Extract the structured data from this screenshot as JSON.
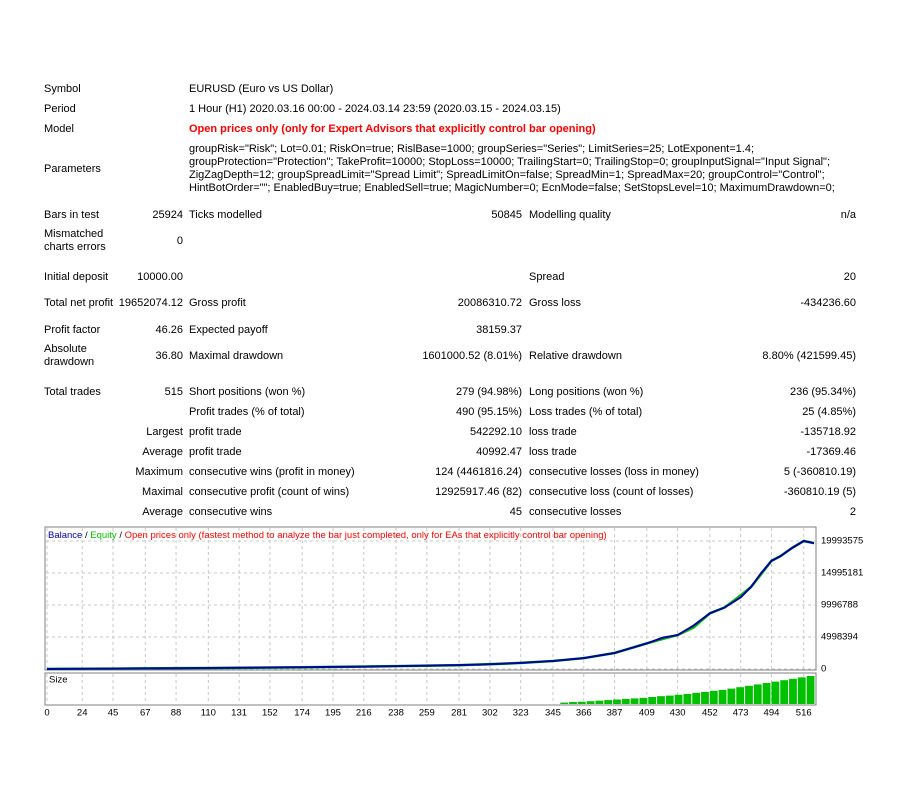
{
  "report": {
    "header_rows": [
      {
        "label": "Symbol",
        "value": [
          "EURUSD (Euro vs US Dollar)"
        ]
      },
      {
        "label": "Period",
        "value": [
          "1 Hour (H1) 2020.03.16 00:00 - 2024.03.14 23:59 (2020.03.15 - 2024.03.15)"
        ]
      },
      {
        "label": "Model",
        "value": [
          "Open prices only (only for Expert Advisors that explicitly control bar opening)"
        ],
        "value_color": "#ff0000"
      },
      {
        "label": "Parameters",
        "value": [
          "groupRisk=\"Risk\"; Lot=0.01; RiskOn=true; RislBase=1000; groupSeries=\"Series\"; LimitSeries=25; LotExponent=1.4;",
          "groupProtection=\"Protection\"; TakeProfit=10000; StopLoss=10000; TrailingStart=0; TrailingStop=0; groupInputSignal=\"Input Signal\";",
          "ZigZagDepth=12; groupSpreadLimit=\"Spread Limit\"; SpreadLimitOn=false; SpreadMin=1; SpreadMax=20; groupControl=\"Control\";",
          "HintBotOrder=\"\"; EnabledBuy=true; EnabledSell=true; MagicNumber=0; EcnMode=false; SetStopsLevel=10; MaximumDrawdown=0;"
        ]
      }
    ],
    "stats_rows": [
      {
        "l1": "Bars in test",
        "v1": "25924",
        "l2": "Ticks modelled",
        "v2": "50845",
        "l3": "Modelling quality",
        "v3": "n/a"
      },
      {
        "l1": "Mismatched charts errors",
        "v1": "0"
      },
      {
        "l1": "Initial deposit",
        "v1": "10000.00",
        "l3": "Spread",
        "v3": "20"
      },
      {
        "l1": "Total net profit",
        "v1": "19652074.12",
        "l2": "Gross profit",
        "v2": "20086310.72",
        "l3": "Gross loss",
        "v3": "-434236.60"
      },
      {
        "l1": "Profit factor",
        "v1": "46.26",
        "l2": "Expected payoff",
        "v2": "38159.37"
      },
      {
        "l1": "Absolute drawdown",
        "v1": "36.80",
        "l2": "Maximal drawdown",
        "v2": "1601000.52 (8.01%)",
        "l3": "Relative drawdown",
        "v3": "8.80% (421599.45)"
      },
      {
        "l1": "Total trades",
        "v1": "515",
        "l2": "Short positions (won %)",
        "v2": "279 (94.98%)",
        "l3": "Long positions (won %)",
        "v3": "236 (95.34%)"
      },
      {
        "l2": "Profit trades (% of total)",
        "v2": "490 (95.15%)",
        "l3": "Loss trades (% of total)",
        "v3": "25 (4.85%)"
      },
      {
        "v1": "Largest",
        "l2": "profit trade",
        "v2": "542292.10",
        "l3": "loss trade",
        "v3": "-135718.92"
      },
      {
        "v1": "Average",
        "l2": "profit trade",
        "v2": "40992.47",
        "l3": "loss trade",
        "v3": "-17369.46"
      },
      {
        "v1": "Maximum",
        "l2": "consecutive wins (profit in money)",
        "v2": "124 (4461816.24)",
        "l3": "consecutive losses (loss in money)",
        "v3": "5 (-360810.19)"
      },
      {
        "v1": "Maximal",
        "l2": "consecutive profit (count of wins)",
        "v2": "12925917.46 (82)",
        "l3": "consecutive loss (count of losses)",
        "v3": "-360810.19 (5)"
      },
      {
        "v1": "Average",
        "l2": "consecutive wins",
        "v2": "45",
        "l3": "consecutive losses",
        "v3": "2"
      }
    ]
  },
  "chart_data": {
    "type": "line",
    "legend_separator": "/",
    "note": "Open prices only (fastest method to analyze the bar just completed, only for EAs that explicitly control bar opening)",
    "note_color": "#ff0000",
    "grid": true,
    "xlim": [
      0,
      523
    ],
    "xticks": [
      0,
      24,
      45,
      67,
      88,
      110,
      131,
      152,
      174,
      195,
      216,
      238,
      259,
      281,
      302,
      323,
      345,
      366,
      387,
      409,
      430,
      452,
      473,
      494,
      516
    ],
    "ylim": [
      0,
      22180000
    ],
    "yticks": [
      0,
      4998394,
      9996788,
      14995181,
      19993575
    ],
    "x": [
      0,
      24,
      45,
      67,
      88,
      110,
      131,
      152,
      174,
      195,
      216,
      238,
      259,
      281,
      302,
      323,
      345,
      366,
      387,
      409,
      420,
      430,
      441,
      452,
      462,
      473,
      480,
      487,
      494,
      500,
      508,
      516,
      523
    ],
    "series": [
      {
        "name": "Equity",
        "color": "#00c000",
        "values": [
          10000,
          30000,
          60000,
          90000,
          120000,
          150000,
          190000,
          230000,
          270000,
          330000,
          380000,
          450000,
          520000,
          600000,
          750000,
          950000,
          1250000,
          1700000,
          2500000,
          4000000,
          4700000,
          5300000,
          6500000,
          8700000,
          9600000,
          11500000,
          12800000,
          14800000,
          16900000,
          17600000,
          18900000,
          20000000,
          19662074
        ]
      },
      {
        "name": "Balance",
        "color": "#0000a0",
        "values": [
          10000,
          30000,
          60000,
          90000,
          120000,
          150000,
          190000,
          230000,
          270000,
          330000,
          380000,
          450000,
          520000,
          600000,
          750000,
          950000,
          1250000,
          1700000,
          2500000,
          4000000,
          4900000,
          5300000,
          6800000,
          8700000,
          9600000,
          11200000,
          12800000,
          15000000,
          16900000,
          17600000,
          18900000,
          20000000,
          19662074
        ]
      }
    ],
    "size": {
      "name": "Size",
      "color": "#00c000",
      "x": [
        350,
        356,
        362,
        368,
        374,
        380,
        386,
        392,
        398,
        404,
        410,
        416,
        422,
        428,
        434,
        440,
        446,
        452,
        458,
        464,
        470,
        476,
        482,
        488,
        494,
        500,
        506,
        512,
        518
      ],
      "values": [
        0.05,
        0.07,
        0.08,
        0.1,
        0.12,
        0.14,
        0.16,
        0.18,
        0.2,
        0.22,
        0.25,
        0.28,
        0.3,
        0.33,
        0.36,
        0.4,
        0.43,
        0.47,
        0.5,
        0.55,
        0.6,
        0.65,
        0.7,
        0.75,
        0.8,
        0.85,
        0.9,
        0.95,
        1.0
      ],
      "ylim": [
        0,
        1
      ]
    }
  }
}
